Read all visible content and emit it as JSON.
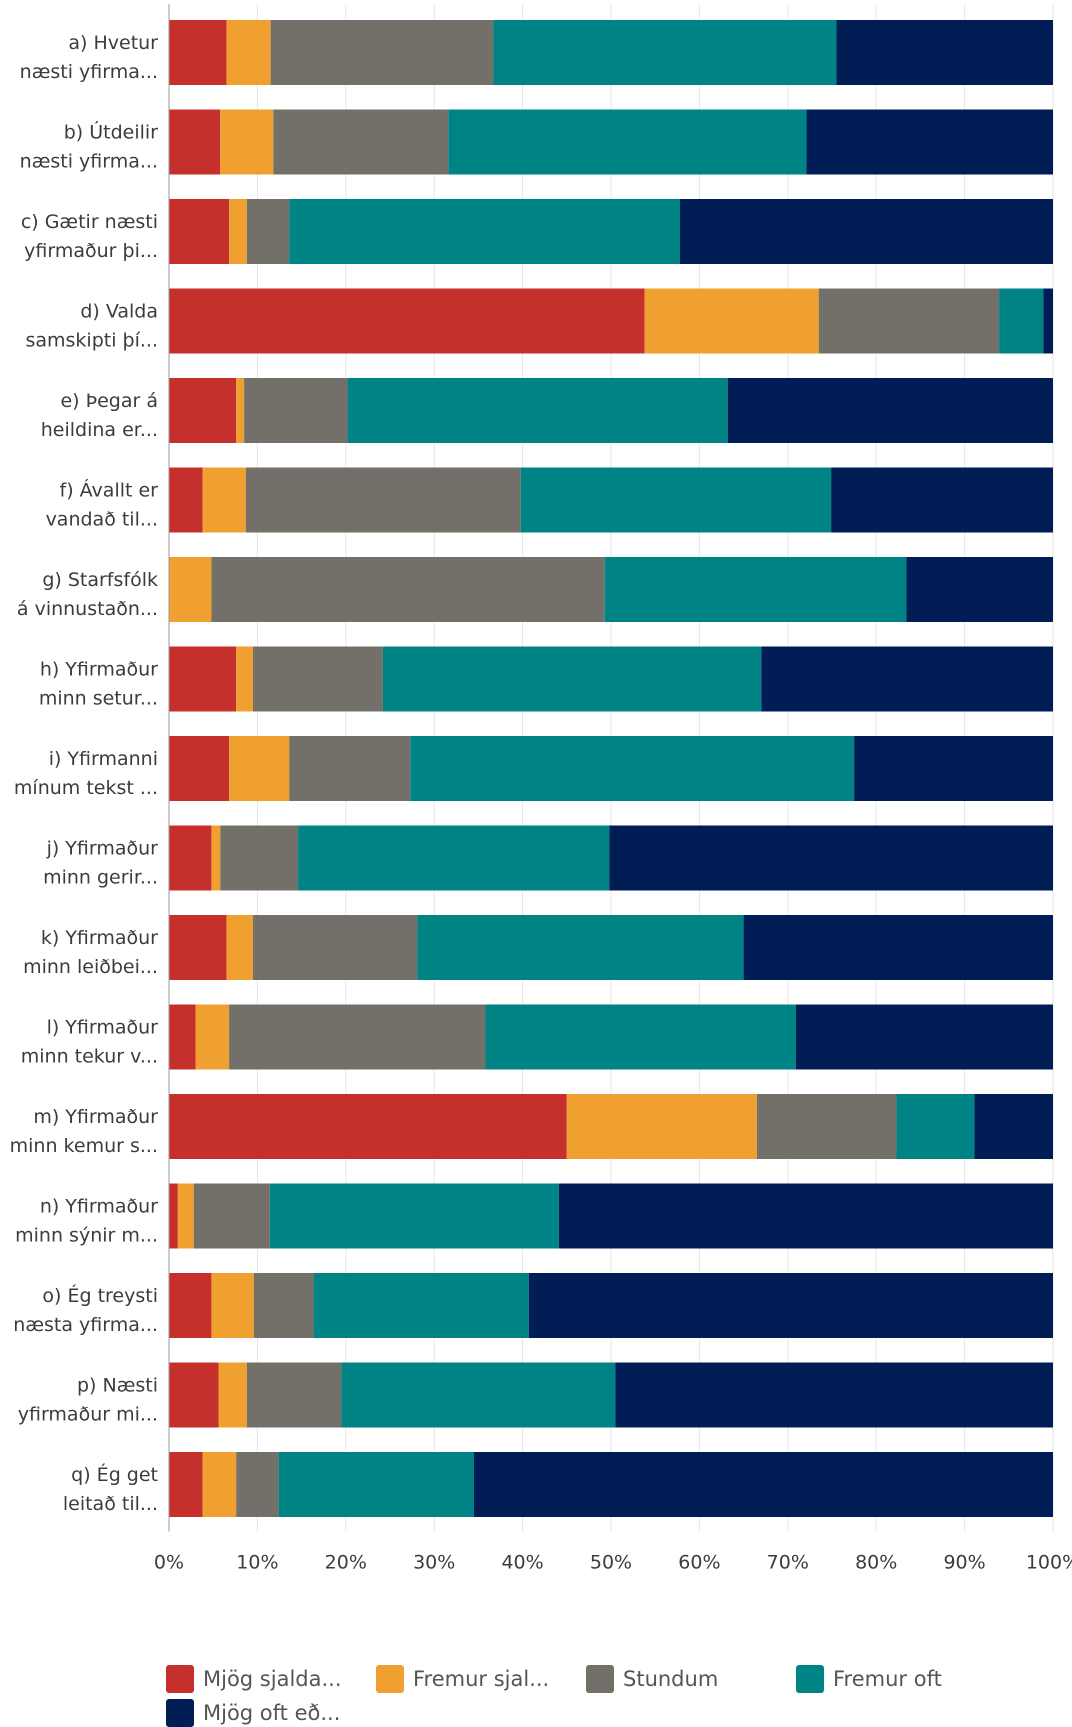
{
  "chart_data": {
    "type": "bar",
    "orientation": "horizontal",
    "stacked": true,
    "xlim": [
      0,
      100
    ],
    "x_ticks": [
      "0%",
      "10%",
      "20%",
      "30%",
      "40%",
      "50%",
      "60%",
      "70%",
      "80%",
      "90%",
      "100%"
    ],
    "grid": true,
    "legend_position": "bottom",
    "categories": [
      [
        "a) Hvetur",
        "næsti yfirma..."
      ],
      [
        "b) Útdeilir",
        "næsti yfirma..."
      ],
      [
        "c) Gætir næsti",
        "yfirmaður þi..."
      ],
      [
        "d) Valda",
        "samskipti þí..."
      ],
      [
        "e) Þegar á",
        "heildina er..."
      ],
      [
        "f) Ávallt er",
        "vandað til..."
      ],
      [
        "g) Starfsfólk",
        "á vinnustaðn..."
      ],
      [
        "h) Yfirmaður",
        "minn setur..."
      ],
      [
        "i) Yfirmanni",
        "mínum tekst ..."
      ],
      [
        "j) Yfirmaður",
        "minn gerir..."
      ],
      [
        "k) Yfirmaður",
        "minn leiðbei..."
      ],
      [
        "l) Yfirmaður",
        "minn tekur v..."
      ],
      [
        "m) Yfirmaður",
        "minn kemur s..."
      ],
      [
        "n) Yfirmaður",
        "minn sýnir m..."
      ],
      [
        "o) Ég treysti",
        "næsta yfirma..."
      ],
      [
        "p) Næsti",
        "yfirmaður mi..."
      ],
      [
        "q) Ég get",
        "leitað til..."
      ]
    ],
    "series": [
      {
        "name": "Mjög sjalda...",
        "color": "#c5302c",
        "values": [
          6.5,
          5.8,
          6.8,
          53.8,
          7.6,
          3.8,
          0.0,
          7.6,
          6.8,
          4.8,
          6.5,
          3.0,
          45.0,
          1.0,
          4.8,
          5.6,
          3.8
        ]
      },
      {
        "name": "Fremur sjal...",
        "color": "#f0a030",
        "values": [
          5.0,
          6.0,
          2.0,
          19.7,
          0.9,
          4.9,
          4.8,
          1.9,
          6.8,
          1.0,
          3.0,
          3.8,
          21.5,
          1.8,
          4.8,
          3.2,
          3.8
        ]
      },
      {
        "name": "Stundum",
        "color": "#727068",
        "values": [
          25.2,
          19.8,
          4.8,
          20.4,
          11.7,
          31.1,
          44.5,
          14.7,
          13.7,
          8.8,
          18.6,
          29.0,
          15.8,
          8.6,
          6.8,
          10.7,
          4.8
        ]
      },
      {
        "name": "Fremur oft",
        "color": "#008385",
        "values": [
          38.8,
          40.5,
          44.2,
          5.0,
          43.0,
          35.1,
          34.1,
          42.8,
          50.2,
          35.2,
          36.9,
          35.1,
          8.8,
          32.7,
          24.3,
          31.0,
          22.1
        ]
      },
      {
        "name": "Mjög oft eð...",
        "color": "#001d56",
        "values": [
          24.5,
          27.9,
          42.2,
          1.1,
          36.8,
          25.1,
          16.6,
          33.0,
          22.5,
          50.2,
          35.0,
          29.1,
          8.9,
          55.9,
          59.3,
          49.5,
          65.5
        ]
      }
    ]
  }
}
